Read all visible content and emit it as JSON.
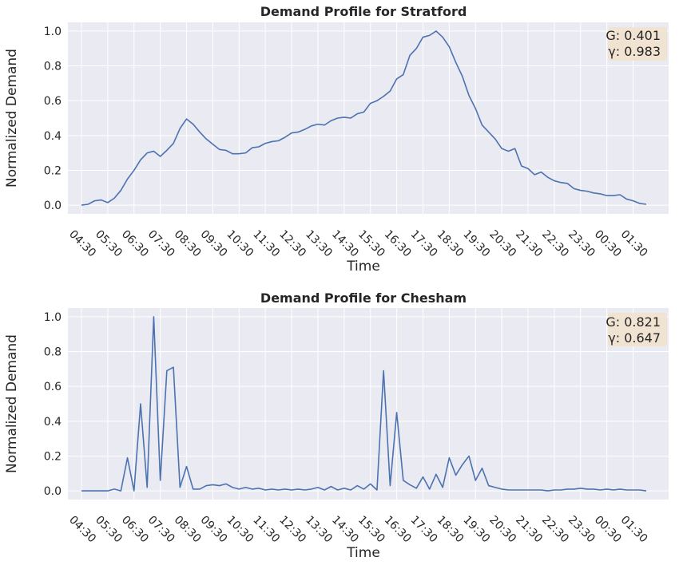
{
  "colors": {
    "series": "#4c72b0",
    "plot_background": "#eaeaf2",
    "stat_box": "#f2e2cb"
  },
  "chart_data": [
    {
      "type": "line",
      "title": "Demand Profile for Stratford",
      "xlabel": "Time",
      "ylabel": "Normalized Demand",
      "ylim": [
        -0.05,
        1.05
      ],
      "yticks": [
        0.0,
        0.2,
        0.4,
        0.6,
        0.8,
        1.0
      ],
      "ytick_labels": [
        "0.0",
        "0.2",
        "0.4",
        "0.6",
        "0.8",
        "1.0"
      ],
      "xtick_labels": [
        "04:30",
        "05:30",
        "06:30",
        "07:30",
        "08:30",
        "09:30",
        "10:30",
        "11:30",
        "12:30",
        "13:30",
        "14:30",
        "15:30",
        "16:30",
        "17:30",
        "18:30",
        "19:30",
        "20:30",
        "21:30",
        "22:30",
        "23:30",
        "00:30",
        "01:30"
      ],
      "x_interval_minutes": 15,
      "grid": true,
      "annotation": {
        "line1": "G: 0.401",
        "line2": "γ: 0.983",
        "placement": "top-right"
      },
      "series": [
        {
          "values": [
            0.0,
            0.005,
            0.025,
            0.03,
            0.015,
            0.04,
            0.085,
            0.15,
            0.2,
            0.26,
            0.3,
            0.31,
            0.28,
            0.315,
            0.355,
            0.44,
            0.495,
            0.465,
            0.42,
            0.38,
            0.35,
            0.32,
            0.315,
            0.295,
            0.295,
            0.3,
            0.33,
            0.335,
            0.355,
            0.365,
            0.37,
            0.39,
            0.415,
            0.42,
            0.435,
            0.455,
            0.465,
            0.46,
            0.485,
            0.5,
            0.505,
            0.5,
            0.525,
            0.535,
            0.585,
            0.6,
            0.625,
            0.655,
            0.725,
            0.75,
            0.86,
            0.9,
            0.965,
            0.975,
            1.0,
            0.965,
            0.91,
            0.82,
            0.74,
            0.63,
            0.555,
            0.46,
            0.42,
            0.38,
            0.325,
            0.31,
            0.325,
            0.225,
            0.21,
            0.175,
            0.19,
            0.16,
            0.14,
            0.13,
            0.125,
            0.095,
            0.085,
            0.08,
            0.07,
            0.065,
            0.055,
            0.055,
            0.06,
            0.035,
            0.025,
            0.01,
            0.005
          ]
        }
      ]
    },
    {
      "type": "line",
      "title": "Demand Profile for Chesham",
      "xlabel": "Time",
      "ylabel": "Normalized Demand",
      "ylim": [
        -0.05,
        1.05
      ],
      "yticks": [
        0.0,
        0.2,
        0.4,
        0.6,
        0.8,
        1.0
      ],
      "ytick_labels": [
        "0.0",
        "0.2",
        "0.4",
        "0.6",
        "0.8",
        "1.0"
      ],
      "xtick_labels": [
        "04:30",
        "05:30",
        "06:30",
        "07:30",
        "08:30",
        "09:30",
        "10:30",
        "11:30",
        "12:30",
        "13:30",
        "14:30",
        "15:30",
        "16:30",
        "17:30",
        "18:30",
        "19:30",
        "20:30",
        "21:30",
        "22:30",
        "23:30",
        "00:30",
        "01:30"
      ],
      "x_interval_minutes": 15,
      "grid": true,
      "annotation": {
        "line1": "G: 0.821",
        "line2": "γ: 0.647",
        "placement": "top-right"
      },
      "series": [
        {
          "values": [
            0.0,
            0.0,
            0.0,
            0.0,
            0.0,
            0.01,
            0.0,
            0.19,
            0.0,
            0.5,
            0.02,
            1.0,
            0.06,
            0.69,
            0.71,
            0.02,
            0.14,
            0.01,
            0.01,
            0.03,
            0.035,
            0.03,
            0.04,
            0.02,
            0.01,
            0.02,
            0.01,
            0.015,
            0.005,
            0.01,
            0.005,
            0.01,
            0.005,
            0.01,
            0.005,
            0.01,
            0.02,
            0.005,
            0.025,
            0.005,
            0.015,
            0.005,
            0.03,
            0.01,
            0.04,
            0.005,
            0.69,
            0.03,
            0.45,
            0.06,
            0.035,
            0.015,
            0.08,
            0.01,
            0.095,
            0.02,
            0.19,
            0.09,
            0.15,
            0.2,
            0.06,
            0.13,
            0.03,
            0.02,
            0.01,
            0.005,
            0.005,
            0.005,
            0.005,
            0.005,
            0.005,
            0.0,
            0.005,
            0.005,
            0.01,
            0.01,
            0.015,
            0.01,
            0.01,
            0.005,
            0.01,
            0.005,
            0.01,
            0.005,
            0.005,
            0.005,
            0.0
          ]
        }
      ]
    }
  ]
}
